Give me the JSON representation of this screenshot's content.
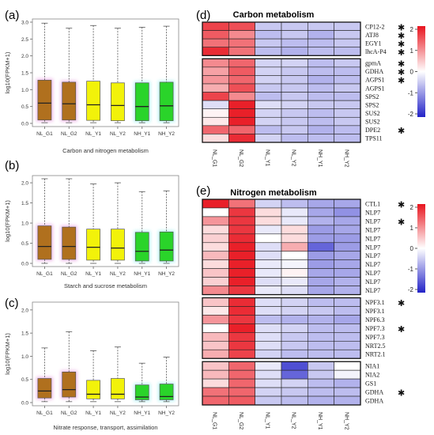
{
  "figure": {
    "panels": {
      "a": {
        "label": "(a)",
        "xlabel": "Carbon and nitrogen metabolism",
        "ylabel": "log10(FPKM+1)",
        "yticks": [
          "0.0",
          "0.5",
          "1.0",
          "1.5",
          "2.0",
          "2.5",
          "3.0"
        ]
      },
      "b": {
        "label": "(b)",
        "xlabel": "Starch and sucrose metabolism",
        "ylabel": "log10(FPKM+1)",
        "yticks": [
          "0.0",
          "0.5",
          "1.0",
          "1.5",
          "2.0"
        ]
      },
      "c": {
        "label": "(c)",
        "xlabel": "Nitrate response, transport, assimilation",
        "ylabel": "log10(FPKM+1)",
        "yticks": [
          "0.0",
          "0.5",
          "1.0",
          "1.5",
          "2.0"
        ]
      },
      "d": {
        "label": "(d)",
        "title": "Carbon metabolism",
        "legend_ticks": [
          "2",
          "1",
          "0",
          "-1",
          "-2"
        ]
      },
      "e": {
        "label": "(e)",
        "title": "Nitrogen metabolism",
        "legend_ticks": [
          "2",
          "1",
          "0",
          "-1",
          "-2"
        ]
      }
    },
    "colors": {
      "NL": "#b0701e",
      "NL_glow": "#e8a0e0",
      "Y": "#f2f20a",
      "NH": "#2ad42a",
      "NH_glow": "#9ff0f0",
      "heat_high": "#e8141e",
      "heat_mid": "#ffffff",
      "heat_low": "#2323c8"
    }
  },
  "chart_data": [
    {
      "type": "box",
      "panel": "a",
      "categories": [
        "NL_G1",
        "NL_G2",
        "NL_Y1",
        "NL_Y2",
        "NH_Y1",
        "NH_Y2"
      ],
      "ylim": [
        0,
        3.0
      ],
      "stats": [
        {
          "min": 0.02,
          "q1": 0.1,
          "median": 0.6,
          "q3": 1.28,
          "max": 2.97
        },
        {
          "min": 0.02,
          "q1": 0.1,
          "median": 0.58,
          "q3": 1.22,
          "max": 2.82
        },
        {
          "min": 0.02,
          "q1": 0.09,
          "median": 0.55,
          "q3": 1.25,
          "max": 2.9
        },
        {
          "min": 0.02,
          "q1": 0.08,
          "median": 0.53,
          "q3": 1.2,
          "max": 2.82
        },
        {
          "min": 0.02,
          "q1": 0.08,
          "median": 0.5,
          "q3": 1.2,
          "max": 2.85
        },
        {
          "min": 0.02,
          "q1": 0.08,
          "median": 0.52,
          "q3": 1.22,
          "max": 2.88
        }
      ]
    },
    {
      "type": "box",
      "panel": "b",
      "categories": [
        "NL_G1",
        "NL_G2",
        "NL_Y1",
        "NL_Y2",
        "NH_Y1",
        "NH_Y2"
      ],
      "ylim": [
        0,
        2.1
      ],
      "stats": [
        {
          "min": 0.0,
          "q1": 0.1,
          "median": 0.42,
          "q3": 0.93,
          "max": 2.1
        },
        {
          "min": 0.0,
          "q1": 0.1,
          "median": 0.42,
          "q3": 0.9,
          "max": 2.1
        },
        {
          "min": 0.0,
          "q1": 0.08,
          "median": 0.4,
          "q3": 0.85,
          "max": 1.97
        },
        {
          "min": 0.0,
          "q1": 0.08,
          "median": 0.38,
          "q3": 0.85,
          "max": 2.0
        },
        {
          "min": 0.0,
          "q1": 0.06,
          "median": 0.3,
          "q3": 0.77,
          "max": 1.78
        },
        {
          "min": 0.0,
          "q1": 0.06,
          "median": 0.33,
          "q3": 0.78,
          "max": 1.8
        }
      ]
    },
    {
      "type": "box",
      "panel": "c",
      "categories": [
        "NL_G1",
        "NL_G2",
        "NL_Y1",
        "NL_Y2",
        "NH_Y1",
        "NH_Y2"
      ],
      "ylim": [
        0,
        2.1
      ],
      "stats": [
        {
          "min": 0.02,
          "q1": 0.1,
          "median": 0.25,
          "q3": 0.52,
          "max": 1.18
        },
        {
          "min": 0.02,
          "q1": 0.12,
          "median": 0.28,
          "q3": 0.66,
          "max": 1.53
        },
        {
          "min": 0.02,
          "q1": 0.08,
          "median": 0.18,
          "q3": 0.48,
          "max": 1.12
        },
        {
          "min": 0.02,
          "q1": 0.08,
          "median": 0.18,
          "q3": 0.52,
          "max": 1.2
        },
        {
          "min": 0.02,
          "q1": 0.06,
          "median": 0.12,
          "q3": 0.38,
          "max": 0.85
        },
        {
          "min": 0.02,
          "q1": 0.06,
          "median": 0.13,
          "q3": 0.4,
          "max": 0.98
        }
      ]
    },
    {
      "type": "heatmap",
      "panel": "d",
      "columns": [
        "NL_G1",
        "NL_G2",
        "NL_Y1",
        "NL_Y2",
        "NH_Y1",
        "NH_Y2"
      ],
      "scale": [
        -2,
        2
      ],
      "groups": [
        {
          "rows": [
            {
              "gene": "CP12-2",
              "star": true,
              "values": [
                1.6,
                1.5,
                -0.5,
                -0.5,
                -0.5,
                -0.5
              ]
            },
            {
              "gene": "ATJ8",
              "star": true,
              "values": [
                1.4,
                1.0,
                -0.6,
                -0.5,
                -0.7,
                -0.5
              ]
            },
            {
              "gene": "EGY1",
              "star": true,
              "values": [
                1.2,
                1.2,
                -0.5,
                -0.6,
                -0.6,
                -0.5
              ]
            },
            {
              "gene": "lhcA-P4",
              "star": true,
              "values": [
                1.8,
                1.2,
                -0.6,
                -0.7,
                -0.6,
                -0.6
              ]
            }
          ]
        },
        {
          "rows": [
            {
              "gene": "gpmA",
              "star": true,
              "values": [
                1.0,
                1.3,
                -0.4,
                -0.4,
                -0.6,
                -0.5
              ]
            },
            {
              "gene": "GDHA",
              "star": true,
              "values": [
                0.8,
                1.4,
                -0.4,
                -0.5,
                -0.6,
                -0.6
              ]
            },
            {
              "gene": "AGPS1",
              "star": true,
              "values": [
                0.9,
                1.3,
                -0.4,
                -0.5,
                -0.7,
                -0.6
              ]
            },
            {
              "gene": "AGPS1",
              "star": false,
              "values": [
                0.7,
                1.5,
                -0.5,
                -0.5,
                -0.6,
                -0.5
              ]
            },
            {
              "gene": "SPS2",
              "star": false,
              "values": [
                1.6,
                1.0,
                -0.6,
                -0.5,
                -0.6,
                -0.6
              ]
            },
            {
              "gene": "SPS2",
              "star": false,
              "values": [
                -0.3,
                1.9,
                -0.3,
                -0.4,
                -0.5,
                -0.5
              ]
            },
            {
              "gene": "SUS2",
              "star": false,
              "values": [
                0.1,
                1.9,
                -0.4,
                -0.5,
                -0.6,
                -0.5
              ]
            },
            {
              "gene": "SUS2",
              "star": false,
              "values": [
                0.2,
                1.9,
                -0.4,
                -0.5,
                -0.6,
                -0.5
              ]
            },
            {
              "gene": "DPE2",
              "star": true,
              "values": [
                1.3,
                1.3,
                -0.6,
                -0.5,
                -0.7,
                -0.6
              ]
            },
            {
              "gene": "TPS11",
              "star": false,
              "values": [
                0.3,
                1.8,
                -0.4,
                -0.6,
                -0.6,
                -0.6
              ]
            }
          ]
        }
      ]
    },
    {
      "type": "heatmap",
      "panel": "e",
      "columns": [
        "NL_G1",
        "NL_G2",
        "NL_Y1",
        "NL_Y2",
        "NH_Y1",
        "NH_Y2"
      ],
      "scale": [
        -2,
        2
      ],
      "groups": [
        {
          "rows": [
            {
              "gene": "CTL1",
              "star": true,
              "values": [
                1.9,
                1.2,
                -0.4,
                -0.6,
                -0.8,
                -0.8
              ]
            },
            {
              "gene": "NLP7",
              "star": false,
              "values": [
                0.0,
                1.7,
                0.3,
                -0.2,
                -0.8,
                -1.0
              ]
            },
            {
              "gene": "NLP7",
              "star": true,
              "values": [
                0.9,
                1.7,
                0.3,
                -0.2,
                -0.7,
                -0.8
              ]
            },
            {
              "gene": "NLP7",
              "star": false,
              "values": [
                0.3,
                1.7,
                -0.2,
                0.3,
                -0.9,
                -0.8
              ]
            },
            {
              "gene": "NLP7",
              "star": false,
              "values": [
                0.4,
                1.8,
                0.0,
                0.3,
                -0.9,
                -0.9
              ]
            },
            {
              "gene": "NLP7",
              "star": false,
              "values": [
                0.3,
                1.9,
                -0.3,
                0.7,
                -1.4,
                -0.9
              ]
            },
            {
              "gene": "NLP7",
              "star": false,
              "values": [
                0.6,
                1.9,
                -0.3,
                0.0,
                -0.9,
                -0.8
              ]
            },
            {
              "gene": "NLP7",
              "star": false,
              "values": [
                0.3,
                1.9,
                -0.2,
                -0.1,
                -0.9,
                -0.8
              ]
            },
            {
              "gene": "NLP7",
              "star": false,
              "values": [
                0.5,
                1.9,
                -0.2,
                0.1,
                -0.8,
                -0.8
              ]
            },
            {
              "gene": "NLP7",
              "star": false,
              "values": [
                0.4,
                1.9,
                -0.3,
                -0.2,
                -0.8,
                -0.7
              ]
            },
            {
              "gene": "NLP7",
              "star": false,
              "values": [
                1.0,
                1.7,
                -0.2,
                -0.3,
                -0.8,
                -0.7
              ]
            }
          ]
        },
        {
          "rows": [
            {
              "gene": "NPF3.1",
              "star": true,
              "values": [
                0.5,
                1.8,
                -0.3,
                -0.4,
                -0.6,
                -0.6
              ]
            },
            {
              "gene": "NPF3.1",
              "star": false,
              "values": [
                0.2,
                1.8,
                -0.3,
                -0.4,
                -0.5,
                -0.6
              ]
            },
            {
              "gene": "NPF6.3",
              "star": false,
              "values": [
                0.9,
                1.7,
                -0.6,
                -0.7,
                -0.7,
                -0.8
              ]
            },
            {
              "gene": "NPF7.3",
              "star": true,
              "values": [
                0.0,
                1.9,
                -0.3,
                -0.4,
                -0.6,
                -0.6
              ]
            },
            {
              "gene": "NPF7.3",
              "star": false,
              "values": [
                0.6,
                1.7,
                -0.3,
                -0.5,
                -0.6,
                -0.6
              ]
            },
            {
              "gene": "NRT2.5",
              "star": false,
              "values": [
                0.5,
                1.7,
                -0.3,
                -0.5,
                -0.6,
                -0.6
              ]
            },
            {
              "gene": "NRT2.1",
              "star": false,
              "values": [
                0.7,
                1.6,
                -0.4,
                -0.6,
                -0.6,
                -0.6
              ]
            }
          ]
        },
        {
          "rows": [
            {
              "gene": "NIA1",
              "star": false,
              "values": [
                0.5,
                1.3,
                -0.2,
                -1.6,
                -0.5,
                0.0
              ]
            },
            {
              "gene": "NIA2",
              "star": false,
              "values": [
                0.6,
                1.3,
                -0.3,
                -1.4,
                -0.5,
                -0.1
              ]
            },
            {
              "gene": "GS1",
              "star": false,
              "values": [
                0.3,
                1.3,
                -0.3,
                -0.4,
                -0.6,
                -0.7
              ]
            },
            {
              "gene": "GDHA",
              "star": true,
              "values": [
                1.2,
                1.3,
                -0.4,
                -0.5,
                -0.6,
                -0.6
              ]
            },
            {
              "gene": "GDHA",
              "star": false,
              "values": [
                1.3,
                1.4,
                -0.5,
                -0.6,
                -0.7,
                -0.7
              ]
            }
          ]
        }
      ]
    }
  ]
}
